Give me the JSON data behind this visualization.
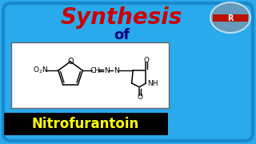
{
  "bg_color": "#29aaec",
  "title1": "Synthesis",
  "title1_color": "#cc0000",
  "title2": "of",
  "title2_color": "#000080",
  "drug_name": "Nitrofurantoin",
  "drug_name_color": "#ffff00",
  "drug_bg_color": "#000000",
  "structure_box_facecolor": "#ffffff",
  "structure_box_edgecolor": "#555555"
}
